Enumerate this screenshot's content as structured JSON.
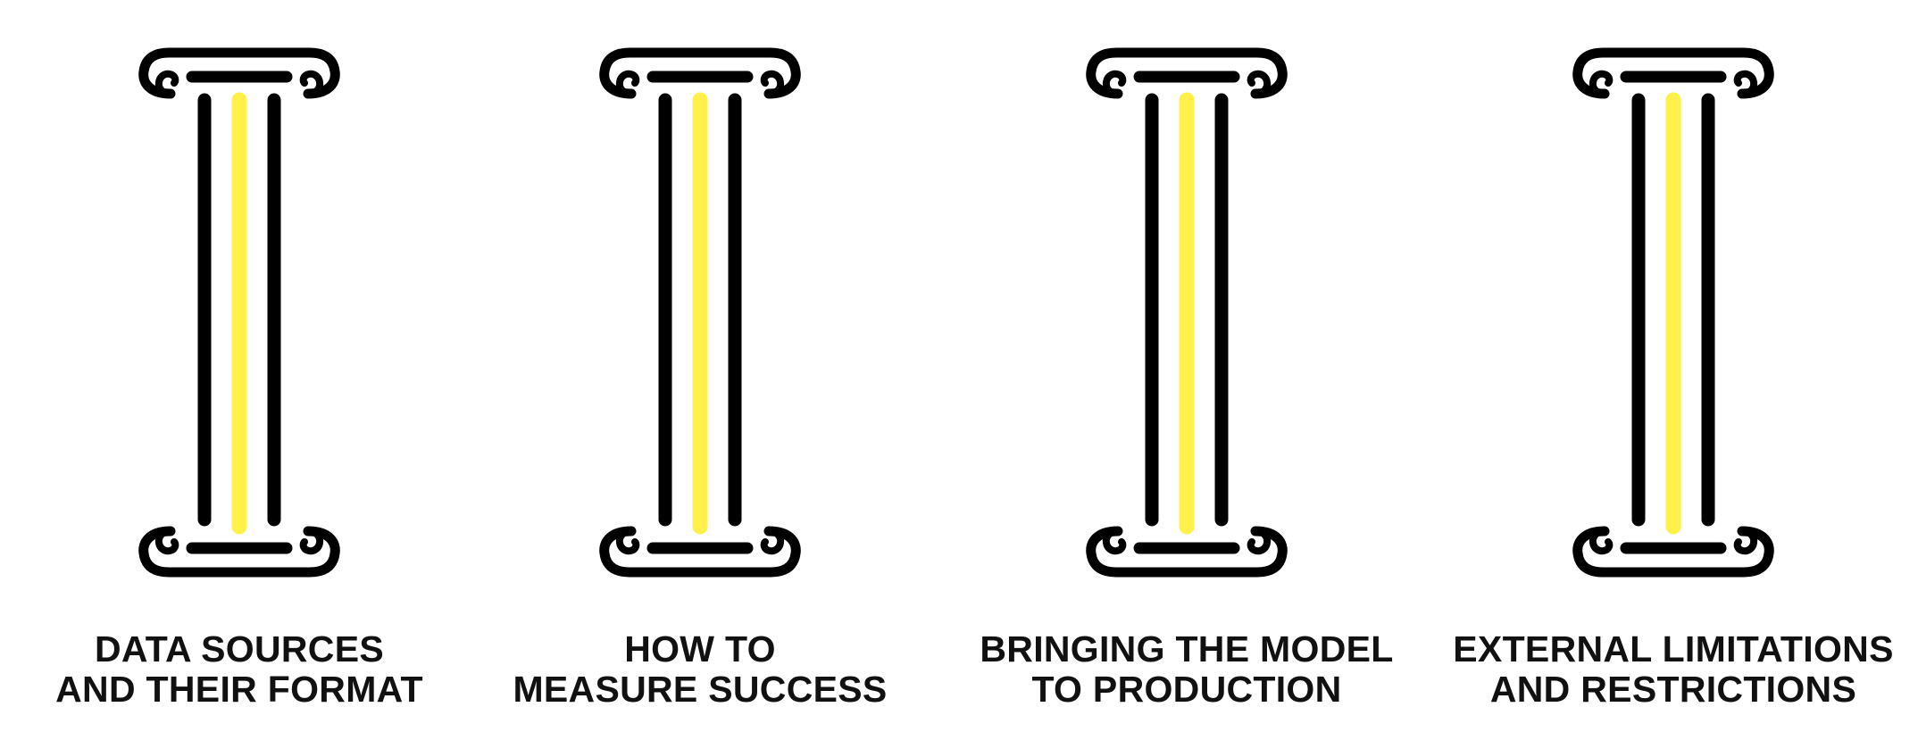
{
  "colors": {
    "stroke": "#000000",
    "accent": "#fff04a",
    "text": "#111111"
  },
  "pillars": [
    {
      "line1": "DATA SOURCES",
      "line2": "AND THEIR FORMAT",
      "icon": "column-icon"
    },
    {
      "line1": "HOW TO",
      "line2": "MEASURE SUCCESS",
      "icon": "column-icon"
    },
    {
      "line1": "BRINGING THE MODEL",
      "line2": "TO PRODUCTION",
      "icon": "column-icon"
    },
    {
      "line1": "EXTERNAL LIMITATIONS",
      "line2": "AND RESTRICTIONS",
      "icon": "column-icon"
    }
  ]
}
